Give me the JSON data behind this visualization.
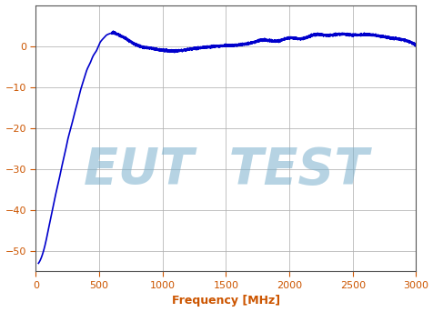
{
  "title": "",
  "xlabel": "Frequency [MHz]",
  "ylabel": "",
  "xlim": [
    0,
    3000
  ],
  "ylim": [
    -55,
    10
  ],
  "yticks": [
    0,
    -10,
    -20,
    -30,
    -40,
    -50
  ],
  "xticks": [
    0,
    500,
    1000,
    1500,
    2000,
    2500,
    3000
  ],
  "line_color": "#0000cc",
  "line_width": 1.2,
  "grid_color": "#b0b0b0",
  "background_color": "#ffffff",
  "watermark_text": "EUT  TEST",
  "watermark_color": "#7ab0cc",
  "watermark_alpha": 0.55,
  "watermark_fontsize": 40,
  "xlabel_fontsize": 9,
  "tick_fontsize": 8,
  "tick_color": "#cc5500",
  "xlabel_color": "#cc5500",
  "spine_color": "#555555",
  "key_freqs": [
    20,
    50,
    80,
    100,
    130,
    150,
    180,
    200,
    230,
    250,
    280,
    300,
    330,
    350,
    380,
    400,
    430,
    450,
    480,
    500,
    530,
    550,
    580,
    600,
    650,
    700,
    750,
    800,
    850,
    900,
    950,
    1000,
    1100,
    1200,
    1300,
    1400,
    1500,
    1600,
    1700,
    1800,
    1900,
    2000,
    2100,
    2200,
    2300,
    2400,
    2500,
    2600,
    2700,
    2800,
    2900,
    3000
  ],
  "key_gains": [
    -53.0,
    -51.0,
    -47.5,
    -44.5,
    -40.0,
    -37.0,
    -33.0,
    -30.0,
    -26.0,
    -23.0,
    -19.5,
    -17.0,
    -13.5,
    -11.0,
    -8.0,
    -6.0,
    -4.0,
    -2.5,
    -1.0,
    0.5,
    1.8,
    2.5,
    3.0,
    3.2,
    2.8,
    2.0,
    1.0,
    0.2,
    -0.3,
    -0.5,
    -0.8,
    -1.0,
    -1.2,
    -0.8,
    -0.4,
    -0.1,
    0.1,
    0.3,
    0.8,
    1.5,
    1.2,
    2.0,
    1.8,
    2.8,
    2.6,
    2.9,
    2.7,
    2.8,
    2.5,
    2.0,
    1.5,
    0.2
  ]
}
